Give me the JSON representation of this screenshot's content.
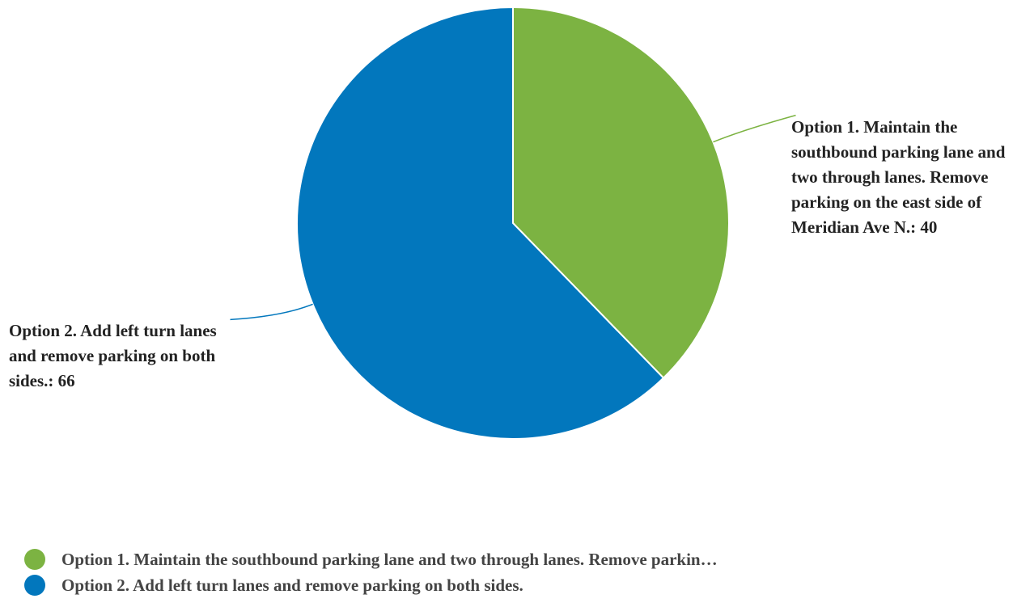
{
  "chart_data": {
    "type": "pie",
    "title": "",
    "slices": [
      {
        "label": "Option 1. Maintain the southbound parking lane and two through lanes. Remove parking on the east side of Meridian Ave N.",
        "value": 40,
        "data_label": "Option 1. Maintain the southbound parking lane and two through lanes. Remove parking on the east side of Meridian Ave N.: 40",
        "legend_label": "Option 1. Maintain the southbound parking lane and two through lanes. Remove parkin…",
        "color": "#7cb342"
      },
      {
        "label": "Option 2. Add left turn lanes and remove parking on both sides.",
        "value": 66,
        "data_label": "Option 2. Add left turn lanes and remove parking on both sides.: 66",
        "legend_label": "Option 2. Add left turn lanes and remove parking on both sides.",
        "color": "#0277bd"
      }
    ],
    "start_angle_deg": 0,
    "direction": "clockwise",
    "legend_position": "bottom-left"
  }
}
